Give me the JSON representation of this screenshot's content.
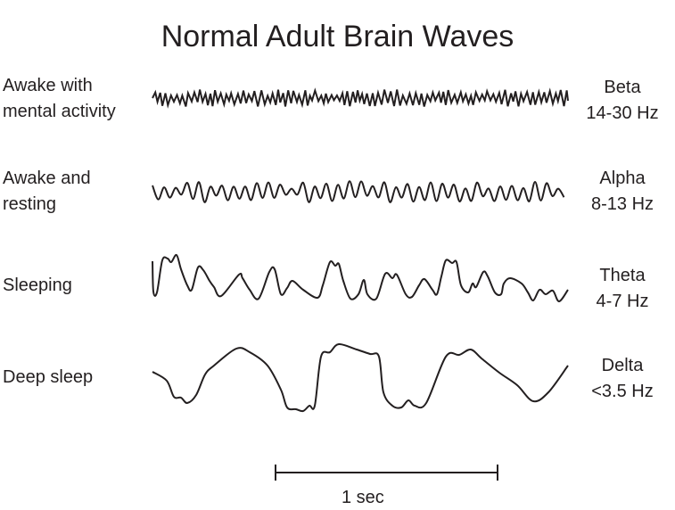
{
  "title": "Normal Adult Brain Waves",
  "rows": [
    {
      "state": [
        "Awake with",
        "mental activity"
      ],
      "wave": "Beta",
      "range": "14-30 Hz"
    },
    {
      "state": [
        "Awake and",
        "resting"
      ],
      "wave": "Alpha",
      "range": "8-13 Hz"
    },
    {
      "state": [
        "Sleeping"
      ],
      "wave": "Theta",
      "range": "4-7 Hz"
    },
    {
      "state": [
        "Deep sleep"
      ],
      "wave": "Delta",
      "range": "<3.5 Hz"
    }
  ],
  "scale_bar": {
    "label": "1 sec"
  },
  "colors": {
    "line": "#231f20",
    "background": "#ffffff"
  }
}
